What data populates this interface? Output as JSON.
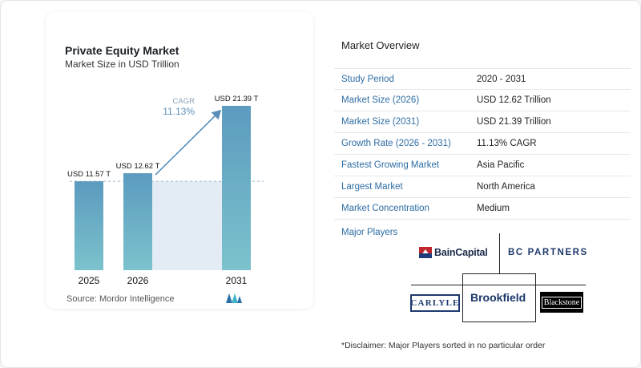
{
  "chart": {
    "title": "Private Equity Market",
    "subtitle": "Market Size in USD Trillion",
    "source": "Source:  Mordor Intelligence",
    "cagr_label": "CAGR",
    "cagr_value": "11.13%"
  },
  "chart_data": {
    "type": "bar",
    "title": "Private Equity Market",
    "subtitle": "Market Size in USD Trillion",
    "categories": [
      "2025",
      "2026",
      "2031"
    ],
    "values": [
      11.57,
      12.62,
      21.39
    ],
    "value_labels": [
      "USD 11.57 T",
      "USD 12.62 T",
      "USD 21.39 T"
    ],
    "unit": "USD Trillion",
    "annotation": {
      "label": "CAGR",
      "value": "11.13%"
    },
    "grid": false,
    "colors": {
      "bar_top": "#5b9bbf",
      "bar_bottom": "#7cc2cc",
      "projection": "#e3ecf4",
      "arrow": "#5b8fb8"
    }
  },
  "overview": {
    "title": "Market Overview",
    "rows": [
      {
        "label": "Study Period",
        "value": "2020 - 2031"
      },
      {
        "label": "Market Size (2026)",
        "value": "USD 12.62 Trillion"
      },
      {
        "label": "Market Size (2031)",
        "value": "USD 21.39 Trillion"
      },
      {
        "label": "Growth Rate (2026 - 2031)",
        "value": "11.13% CAGR"
      },
      {
        "label": "Fastest Growing Market",
        "value": "Asia Pacific"
      },
      {
        "label": "Largest Market",
        "value": "North America"
      },
      {
        "label": "Market Concentration",
        "value": "Medium"
      }
    ]
  },
  "players": {
    "title": "Major Players",
    "logos": [
      "BainCapital",
      "BC PARTNERS",
      "CARLYLE",
      "Brookfield",
      "Blackstone"
    ]
  },
  "disclaimer": "*Disclaimer: Major Players sorted in no particular order",
  "colors": {
    "accent": "#2e6da4"
  }
}
